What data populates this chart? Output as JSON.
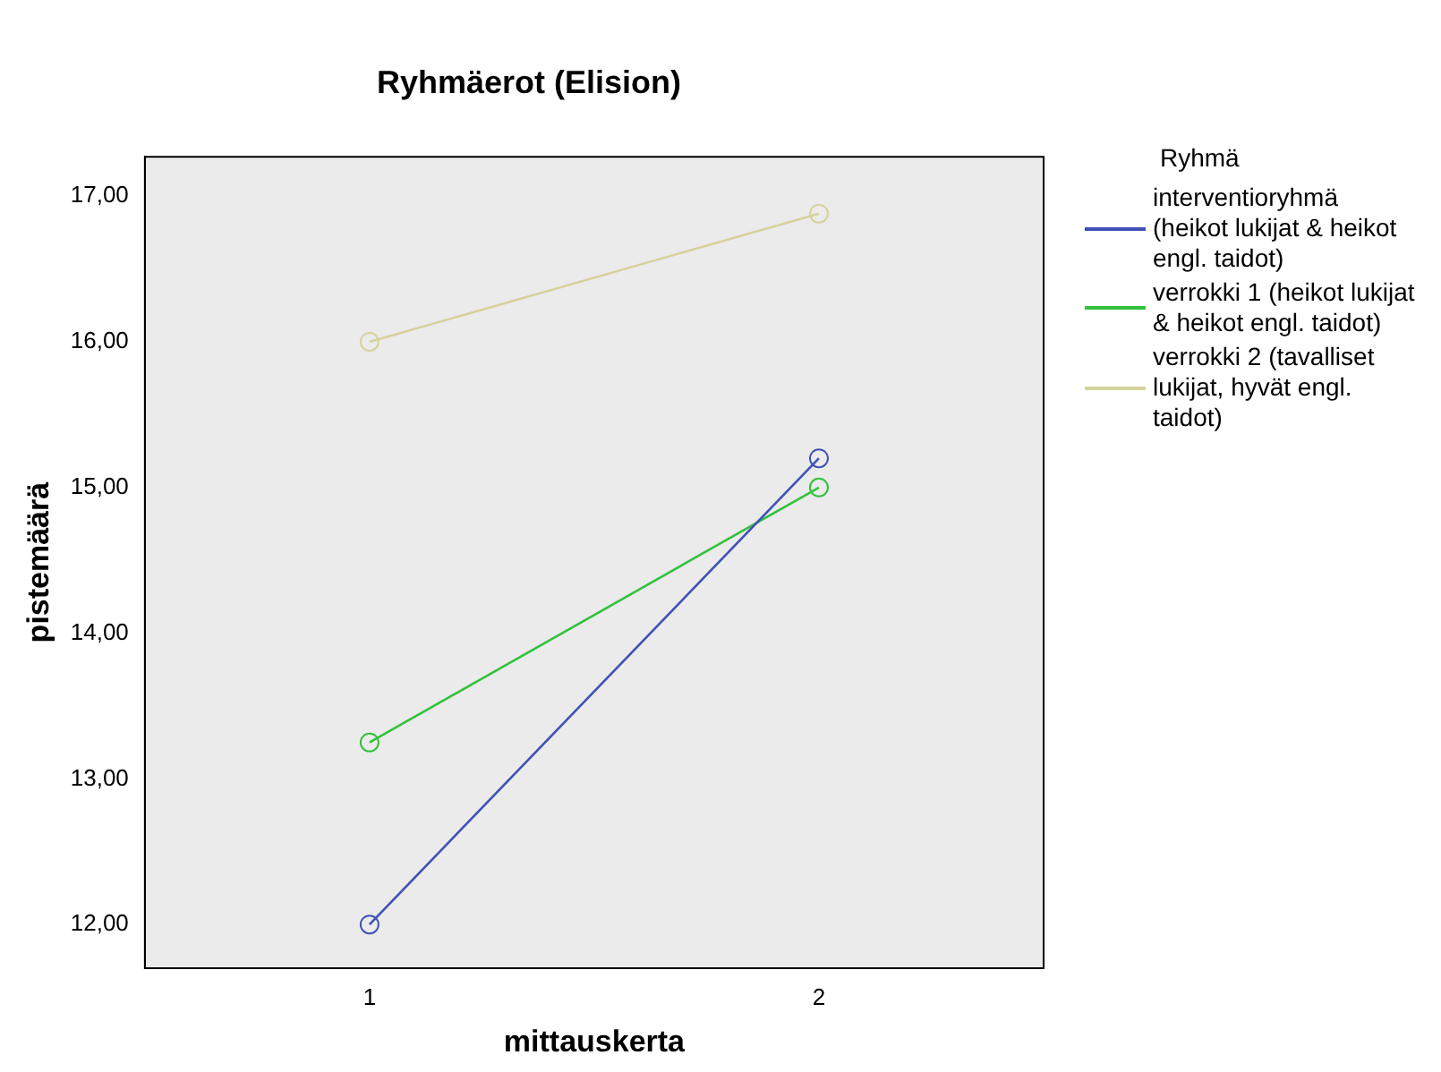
{
  "chart_data": {
    "type": "line",
    "title": "Ryhmäerot (Elision)",
    "xlabel": "mittauskerta",
    "ylabel": "pistemäärä",
    "legend_title": "Ryhmä",
    "categories": [
      "1",
      "2"
    ],
    "series": [
      {
        "name": "interventioryhmä (heikot lukijat & heikot engl. taidot)",
        "color": "#3f51b5",
        "values": [
          12.0,
          15.2
        ]
      },
      {
        "name": "verrokki 1 (heikot lukijat & heikot engl. taidot)",
        "color": "#33c13d",
        "values": [
          13.25,
          15.0
        ]
      },
      {
        "name": "verrokki 2 (tavalliset lukijat, hyvät engl. taidot)",
        "color": "#d6d29c",
        "values": [
          16.0,
          16.88
        ]
      }
    ],
    "ylim": [
      11.7,
      17.27
    ],
    "yticks": [
      {
        "value": 12,
        "label": "12,00"
      },
      {
        "value": 13,
        "label": "13,00"
      },
      {
        "value": 14,
        "label": "14,00"
      },
      {
        "value": 15,
        "label": "15,00"
      },
      {
        "value": 16,
        "label": "16,00"
      },
      {
        "value": 17,
        "label": "17,00"
      }
    ],
    "grid": false,
    "legend": "right",
    "marker": "circle",
    "line_style": "solid"
  }
}
